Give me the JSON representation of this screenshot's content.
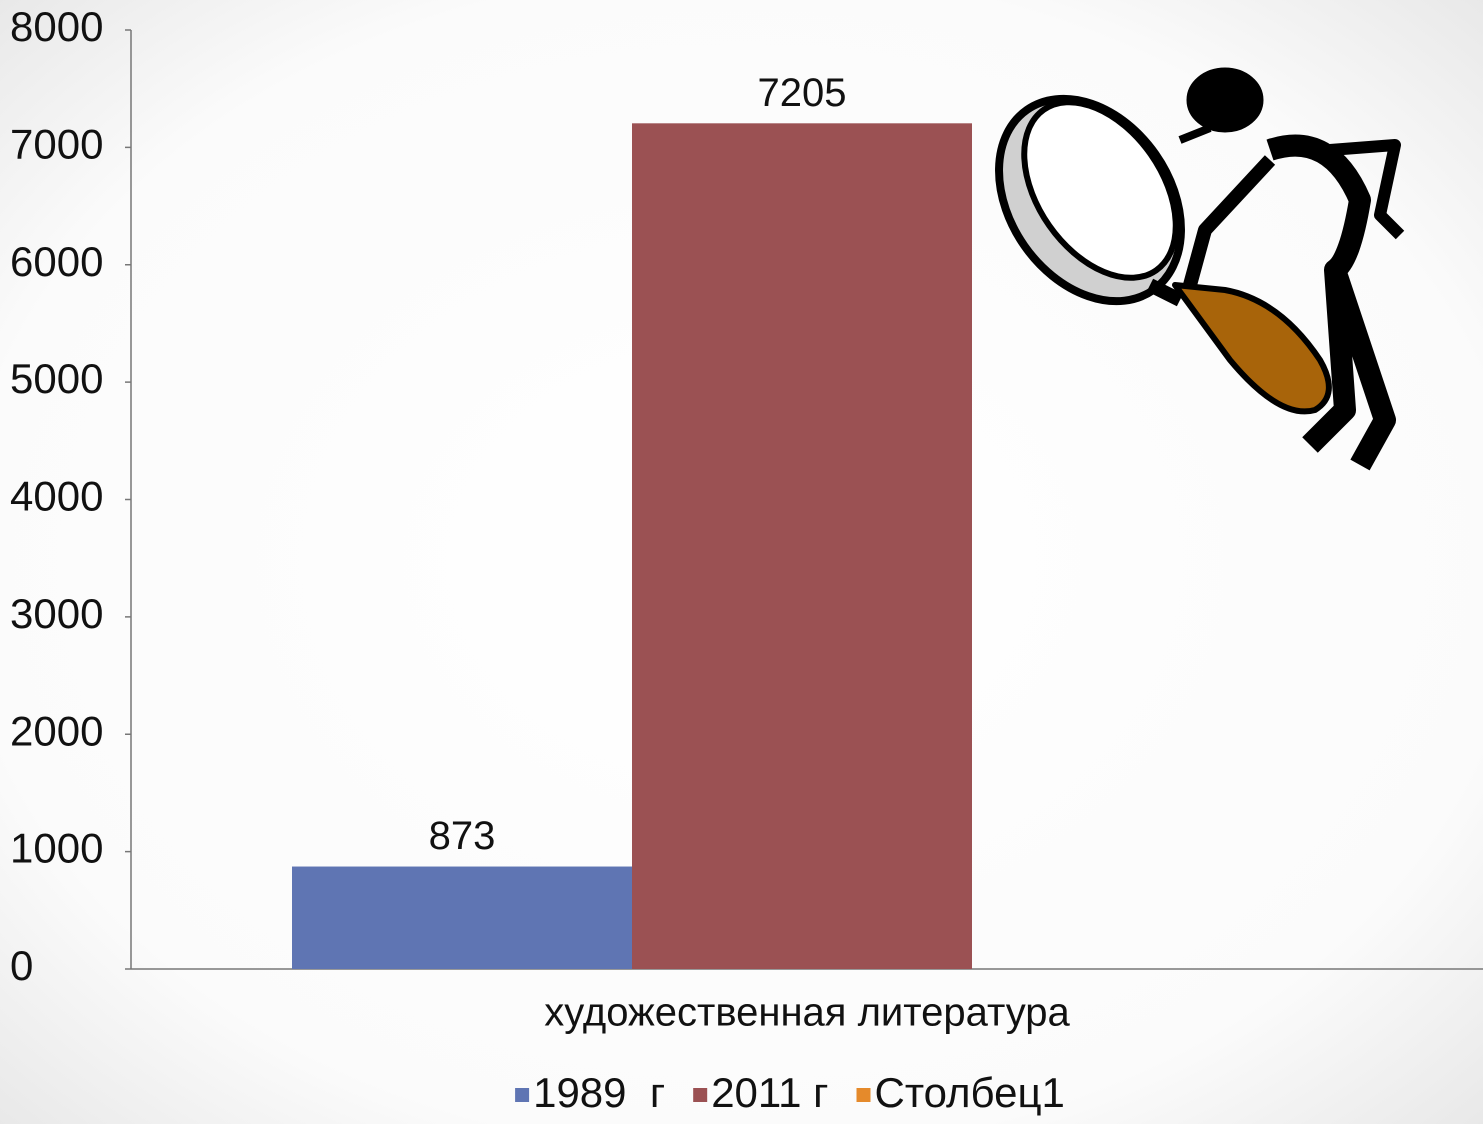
{
  "chart_data": {
    "type": "bar",
    "categories": [
      "художественная литература"
    ],
    "series": [
      {
        "name": "1989  г",
        "color": "#5f75b3",
        "values": [
          873
        ]
      },
      {
        "name": "2011 г",
        "color": "#9b5153",
        "values": [
          7205
        ]
      },
      {
        "name": "Столбец1",
        "color": "#e58a2b",
        "values": [
          null
        ]
      }
    ],
    "ylim": [
      0,
      8000
    ],
    "yticks": [
      0,
      1000,
      2000,
      3000,
      4000,
      5000,
      6000,
      7000,
      8000
    ],
    "legend": "bottom"
  }
}
